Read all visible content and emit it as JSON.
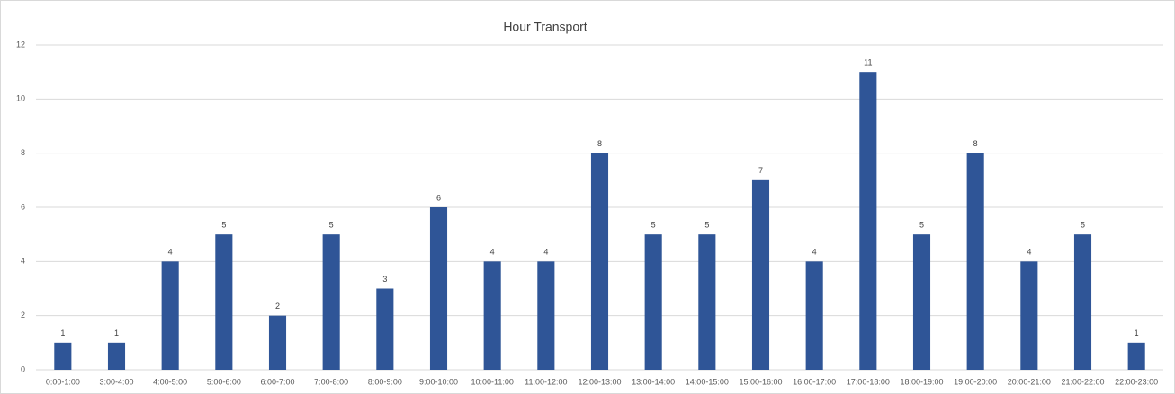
{
  "chart_data": {
    "type": "bar",
    "title": "Hour Transport",
    "categories": [
      "0:00-1:00",
      "3:00-4:00",
      "4:00-5:00",
      "5:00-6:00",
      "6:00-7:00",
      "7:00-8:00",
      "8:00-9:00",
      "9:00-10:00",
      "10:00-11:00",
      "11:00-12:00",
      "12:00-13:00",
      "13:00-14:00",
      "14:00-15:00",
      "15:00-16:00",
      "16:00-17:00",
      "17:00-18:00",
      "18:00-19:00",
      "19:00-20:00",
      "20:00-21:00",
      "21:00-22:00",
      "22:00-23:00"
    ],
    "values": [
      1,
      1,
      4,
      5,
      2,
      5,
      3,
      6,
      4,
      4,
      8,
      5,
      5,
      7,
      4,
      11,
      5,
      8,
      4,
      5,
      1
    ],
    "color": "#2f5597",
    "ylim": [
      0,
      12
    ],
    "yticks": [
      0,
      2,
      4,
      6,
      8,
      10,
      12
    ],
    "grid": true,
    "data_labels": true
  }
}
